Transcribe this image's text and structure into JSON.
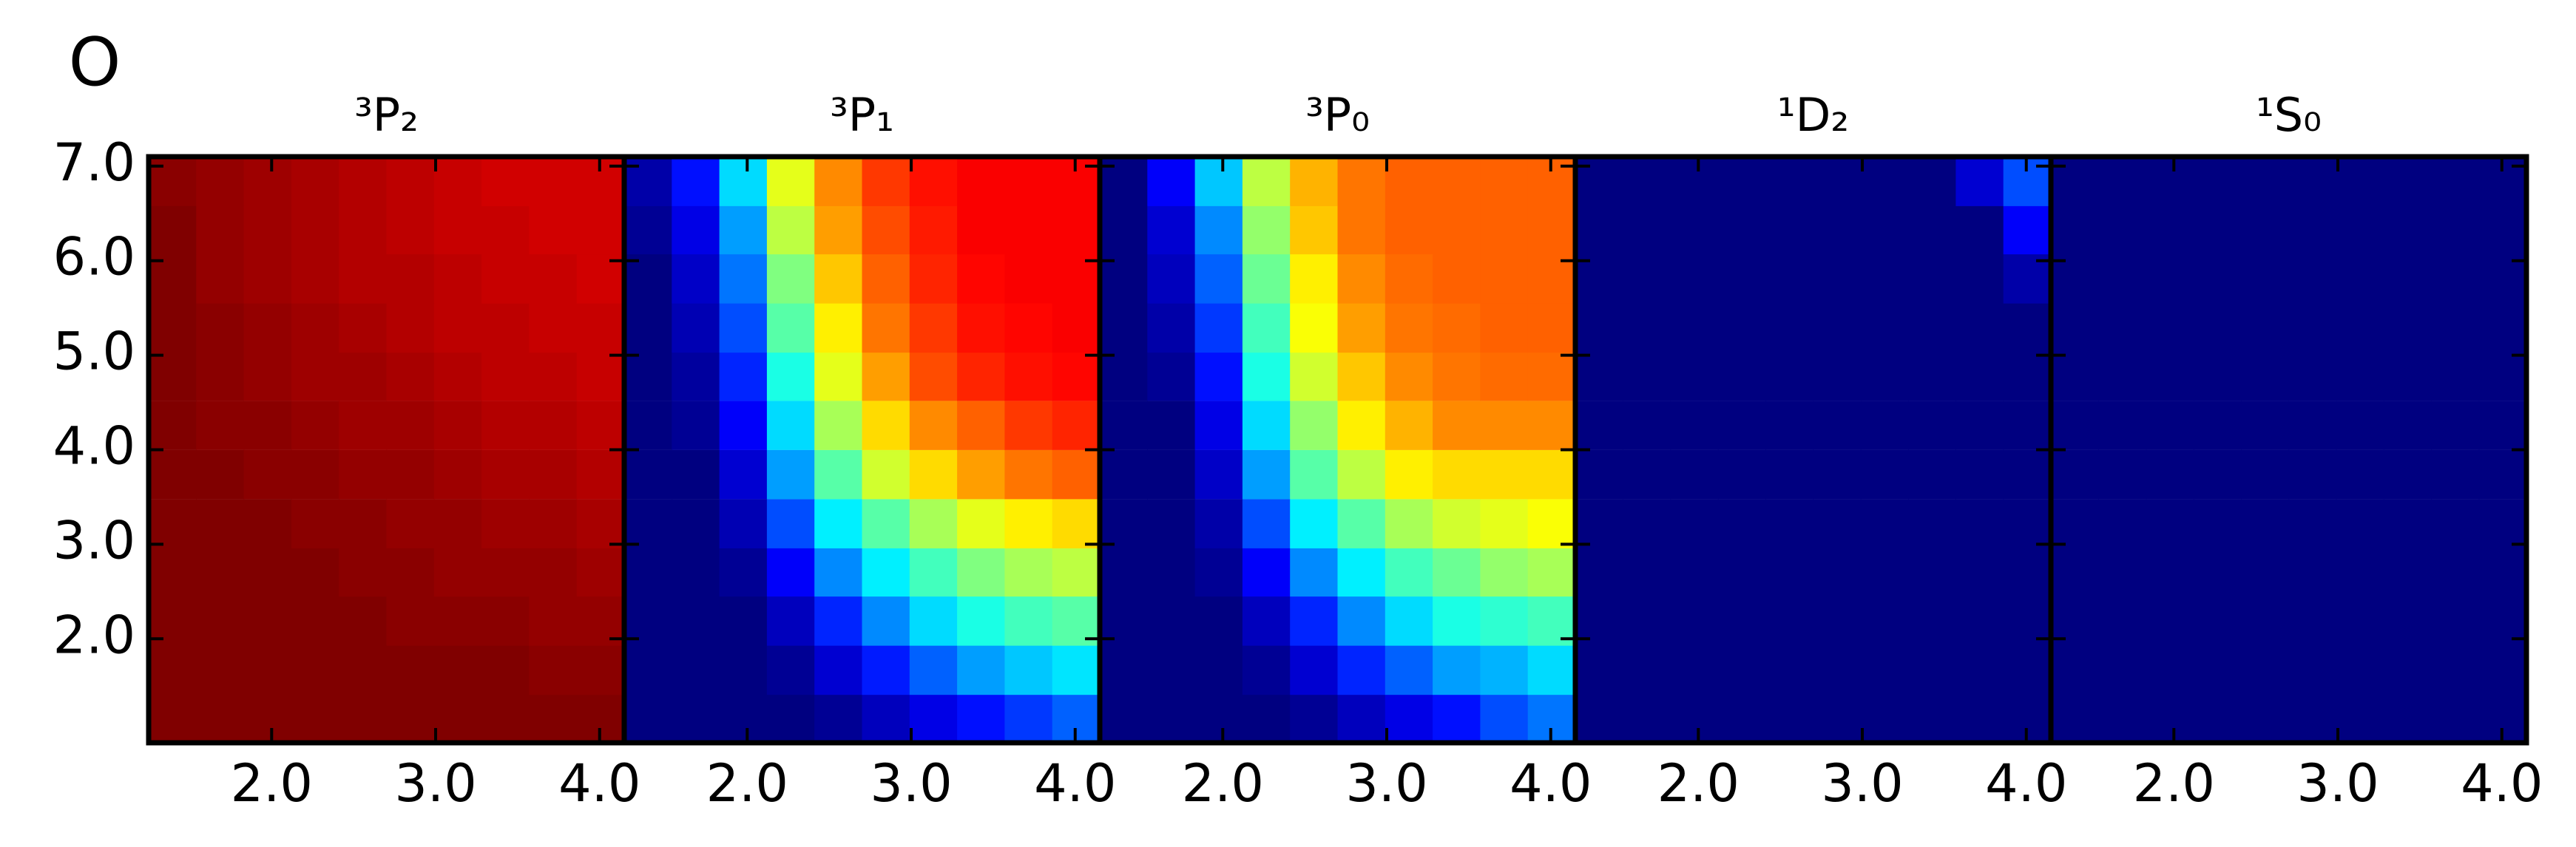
{
  "figure_title": "O",
  "chart_data": [
    {
      "type": "heatmap",
      "title": "³P₂",
      "colormap": "jet",
      "zlim": [
        0,
        1
      ],
      "x": [
        1.395,
        1.685,
        1.975,
        2.265,
        2.555,
        2.845,
        3.135,
        3.425,
        3.715,
        4.005
      ],
      "y": [
        1.16,
        1.67,
        2.19,
        2.71,
        3.22,
        3.74,
        4.26,
        4.78,
        5.29,
        5.81,
        6.33,
        6.84
      ],
      "z": [
        [
          1,
          1,
          1,
          1,
          1,
          1,
          1,
          1,
          1,
          1
        ],
        [
          1,
          1,
          1,
          1,
          1,
          1,
          1,
          1,
          0.99,
          0.99
        ],
        [
          1,
          1,
          1,
          1,
          1,
          0.99,
          0.99,
          0.99,
          0.98,
          0.98
        ],
        [
          1,
          1,
          1,
          1,
          0.99,
          0.99,
          0.98,
          0.98,
          0.98,
          0.97
        ],
        [
          1,
          1,
          1,
          0.99,
          0.99,
          0.98,
          0.98,
          0.97,
          0.97,
          0.96
        ],
        [
          1,
          1,
          0.99,
          0.99,
          0.98,
          0.98,
          0.97,
          0.96,
          0.96,
          0.95
        ],
        [
          1,
          0.99,
          0.99,
          0.98,
          0.97,
          0.97,
          0.96,
          0.95,
          0.95,
          0.94
        ],
        [
          1,
          0.99,
          0.98,
          0.97,
          0.97,
          0.96,
          0.95,
          0.94,
          0.94,
          0.93
        ],
        [
          1,
          0.99,
          0.98,
          0.97,
          0.96,
          0.95,
          0.94,
          0.94,
          0.93,
          0.93
        ],
        [
          1,
          0.98,
          0.97,
          0.96,
          0.95,
          0.95,
          0.94,
          0.93,
          0.93,
          0.92
        ],
        [
          1,
          0.98,
          0.97,
          0.96,
          0.95,
          0.94,
          0.93,
          0.93,
          0.92,
          0.92
        ],
        [
          0.99,
          0.98,
          0.97,
          0.96,
          0.95,
          0.94,
          0.93,
          0.92,
          0.92,
          0.92
        ]
      ],
      "xlim": [
        1.25,
        4.15
      ],
      "ylim": [
        0.9,
        7.1
      ],
      "xticks": [
        {
          "value": 2,
          "label": "2.0"
        },
        {
          "value": 3,
          "label": "3.0"
        },
        {
          "value": 4,
          "label": "4.0"
        }
      ],
      "yticks": [
        {
          "value": 2,
          "label": "2.0"
        },
        {
          "value": 3,
          "label": "3.0"
        },
        {
          "value": 4,
          "label": "4.0"
        },
        {
          "value": 5,
          "label": "5.0"
        },
        {
          "value": 6,
          "label": "6.0"
        },
        {
          "value": 7,
          "label": "7.0"
        }
      ]
    },
    {
      "type": "heatmap",
      "title": "³P₁",
      "colormap": "jet",
      "zlim": [
        0,
        1
      ],
      "x": [
        1.395,
        1.685,
        1.975,
        2.265,
        2.555,
        2.845,
        3.135,
        3.425,
        3.715,
        4.005
      ],
      "y": [
        1.16,
        1.67,
        2.19,
        2.71,
        3.22,
        3.74,
        4.26,
        4.78,
        5.29,
        5.81,
        6.33,
        6.84
      ],
      "z": [
        [
          0,
          0,
          0,
          0,
          0.02,
          0.06,
          0.1,
          0.14,
          0.18,
          0.22
        ],
        [
          0,
          0,
          0,
          0.02,
          0.08,
          0.15,
          0.22,
          0.28,
          0.32,
          0.35
        ],
        [
          0,
          0,
          0,
          0.06,
          0.16,
          0.26,
          0.34,
          0.4,
          0.44,
          0.46
        ],
        [
          0,
          0,
          0.02,
          0.12,
          0.26,
          0.36,
          0.44,
          0.5,
          0.54,
          0.56
        ],
        [
          0,
          0,
          0.05,
          0.2,
          0.36,
          0.46,
          0.54,
          0.6,
          0.64,
          0.66
        ],
        [
          0,
          0,
          0.08,
          0.28,
          0.46,
          0.58,
          0.66,
          0.72,
          0.76,
          0.78
        ],
        [
          0,
          0.02,
          0.12,
          0.34,
          0.54,
          0.66,
          0.74,
          0.78,
          0.82,
          0.84
        ],
        [
          0,
          0.03,
          0.16,
          0.4,
          0.6,
          0.72,
          0.8,
          0.84,
          0.86,
          0.87
        ],
        [
          0,
          0.05,
          0.2,
          0.46,
          0.64,
          0.76,
          0.82,
          0.86,
          0.87,
          0.88
        ],
        [
          0,
          0.07,
          0.24,
          0.5,
          0.68,
          0.78,
          0.84,
          0.87,
          0.88,
          0.88
        ],
        [
          0.02,
          0.1,
          0.28,
          0.56,
          0.72,
          0.8,
          0.85,
          0.88,
          0.88,
          0.88
        ],
        [
          0.04,
          0.14,
          0.34,
          0.6,
          0.74,
          0.82,
          0.86,
          0.88,
          0.88,
          0.88
        ]
      ],
      "xlim": [
        1.25,
        4.15
      ],
      "ylim": [
        0.9,
        7.1
      ],
      "xticks": [
        {
          "value": 2,
          "label": "2.0"
        },
        {
          "value": 3,
          "label": "3.0"
        },
        {
          "value": 4,
          "label": "4.0"
        }
      ]
    },
    {
      "type": "heatmap",
      "title": "³P₀",
      "colormap": "jet",
      "zlim": [
        0,
        1
      ],
      "x": [
        1.395,
        1.685,
        1.975,
        2.265,
        2.555,
        2.845,
        3.135,
        3.425,
        3.715,
        4.005
      ],
      "y": [
        1.16,
        1.67,
        2.19,
        2.71,
        3.22,
        3.74,
        4.26,
        4.78,
        5.29,
        5.81,
        6.33,
        6.84
      ],
      "z": [
        [
          0,
          0,
          0,
          0,
          0.02,
          0.06,
          0.1,
          0.14,
          0.2,
          0.24
        ],
        [
          0,
          0,
          0,
          0.02,
          0.08,
          0.16,
          0.22,
          0.28,
          0.3,
          0.34
        ],
        [
          0,
          0,
          0,
          0.06,
          0.16,
          0.26,
          0.34,
          0.4,
          0.42,
          0.44
        ],
        [
          0,
          0,
          0.02,
          0.12,
          0.26,
          0.36,
          0.44,
          0.48,
          0.52,
          0.54
        ],
        [
          0,
          0,
          0.04,
          0.2,
          0.36,
          0.46,
          0.54,
          0.58,
          0.6,
          0.62
        ],
        [
          0,
          0,
          0.07,
          0.28,
          0.46,
          0.56,
          0.64,
          0.66,
          0.66,
          0.66
        ],
        [
          0,
          0,
          0.1,
          0.34,
          0.52,
          0.64,
          0.7,
          0.74,
          0.74,
          0.74
        ],
        [
          0,
          0.02,
          0.14,
          0.4,
          0.58,
          0.68,
          0.74,
          0.76,
          0.77,
          0.77
        ],
        [
          0,
          0.04,
          0.18,
          0.44,
          0.62,
          0.72,
          0.76,
          0.77,
          0.78,
          0.78
        ],
        [
          0,
          0.06,
          0.22,
          0.48,
          0.64,
          0.74,
          0.77,
          0.78,
          0.78,
          0.78
        ],
        [
          0,
          0.08,
          0.26,
          0.52,
          0.68,
          0.76,
          0.78,
          0.78,
          0.78,
          0.78
        ],
        [
          0,
          0.12,
          0.32,
          0.56,
          0.7,
          0.76,
          0.78,
          0.78,
          0.78,
          0.78
        ]
      ],
      "xlim": [
        1.25,
        4.15
      ],
      "ylim": [
        0.9,
        7.1
      ],
      "xticks": [
        {
          "value": 2,
          "label": "2.0"
        },
        {
          "value": 3,
          "label": "3.0"
        },
        {
          "value": 4,
          "label": "4.0"
        }
      ]
    },
    {
      "type": "heatmap",
      "title": "¹D₂",
      "colormap": "jet",
      "zlim": [
        0,
        1
      ],
      "x": [
        1.395,
        1.685,
        1.975,
        2.265,
        2.555,
        2.845,
        3.135,
        3.425,
        3.715,
        4.005
      ],
      "y": [
        1.16,
        1.67,
        2.19,
        2.71,
        3.22,
        3.74,
        4.26,
        4.78,
        5.29,
        5.81,
        6.33,
        6.84
      ],
      "z": [
        [
          0,
          0,
          0,
          0,
          0,
          0,
          0,
          0,
          0,
          0
        ],
        [
          0,
          0,
          0,
          0,
          0,
          0,
          0,
          0,
          0,
          0
        ],
        [
          0,
          0,
          0,
          0,
          0,
          0,
          0,
          0,
          0,
          0
        ],
        [
          0,
          0,
          0,
          0,
          0,
          0,
          0,
          0,
          0,
          0
        ],
        [
          0,
          0,
          0,
          0,
          0,
          0,
          0,
          0,
          0,
          0
        ],
        [
          0,
          0,
          0,
          0,
          0,
          0,
          0,
          0,
          0,
          0
        ],
        [
          0,
          0,
          0,
          0,
          0,
          0,
          0,
          0,
          0,
          0
        ],
        [
          0,
          0,
          0,
          0,
          0,
          0,
          0,
          0,
          0,
          0
        ],
        [
          0,
          0,
          0,
          0,
          0,
          0,
          0,
          0,
          0,
          0
        ],
        [
          0,
          0,
          0,
          0,
          0,
          0,
          0,
          0,
          0,
          0.04
        ],
        [
          0,
          0,
          0,
          0,
          0,
          0,
          0,
          0,
          0,
          0.12
        ],
        [
          0,
          0,
          0,
          0,
          0,
          0,
          0,
          0,
          0.08,
          0.2
        ]
      ],
      "xlim": [
        1.25,
        4.15
      ],
      "ylim": [
        0.9,
        7.1
      ],
      "xticks": [
        {
          "value": 2,
          "label": "2.0"
        },
        {
          "value": 3,
          "label": "3.0"
        },
        {
          "value": 4,
          "label": "4.0"
        }
      ]
    },
    {
      "type": "heatmap",
      "title": "¹S₀",
      "colormap": "jet",
      "zlim": [
        0,
        1
      ],
      "x": [
        1.395,
        1.685,
        1.975,
        2.265,
        2.555,
        2.845,
        3.135,
        3.425,
        3.715,
        4.005
      ],
      "y": [
        1.16,
        1.67,
        2.19,
        2.71,
        3.22,
        3.74,
        4.26,
        4.78,
        5.29,
        5.81,
        6.33,
        6.84
      ],
      "z": [
        [
          0,
          0,
          0,
          0,
          0,
          0,
          0,
          0,
          0,
          0
        ],
        [
          0,
          0,
          0,
          0,
          0,
          0,
          0,
          0,
          0,
          0
        ],
        [
          0,
          0,
          0,
          0,
          0,
          0,
          0,
          0,
          0,
          0
        ],
        [
          0,
          0,
          0,
          0,
          0,
          0,
          0,
          0,
          0,
          0
        ],
        [
          0,
          0,
          0,
          0,
          0,
          0,
          0,
          0,
          0,
          0
        ],
        [
          0,
          0,
          0,
          0,
          0,
          0,
          0,
          0,
          0,
          0
        ],
        [
          0,
          0,
          0,
          0,
          0,
          0,
          0,
          0,
          0,
          0
        ],
        [
          0,
          0,
          0,
          0,
          0,
          0,
          0,
          0,
          0,
          0
        ],
        [
          0,
          0,
          0,
          0,
          0,
          0,
          0,
          0,
          0,
          0
        ],
        [
          0,
          0,
          0,
          0,
          0,
          0,
          0,
          0,
          0,
          0
        ],
        [
          0,
          0,
          0,
          0,
          0,
          0,
          0,
          0,
          0,
          0
        ],
        [
          0,
          0,
          0,
          0,
          0,
          0,
          0,
          0,
          0,
          0
        ]
      ],
      "xlim": [
        1.25,
        4.15
      ],
      "ylim": [
        0.9,
        7.1
      ],
      "xticks": [
        {
          "value": 2,
          "label": "2.0"
        },
        {
          "value": 3,
          "label": "3.0"
        },
        {
          "value": 4,
          "label": "4.0"
        }
      ]
    }
  ]
}
